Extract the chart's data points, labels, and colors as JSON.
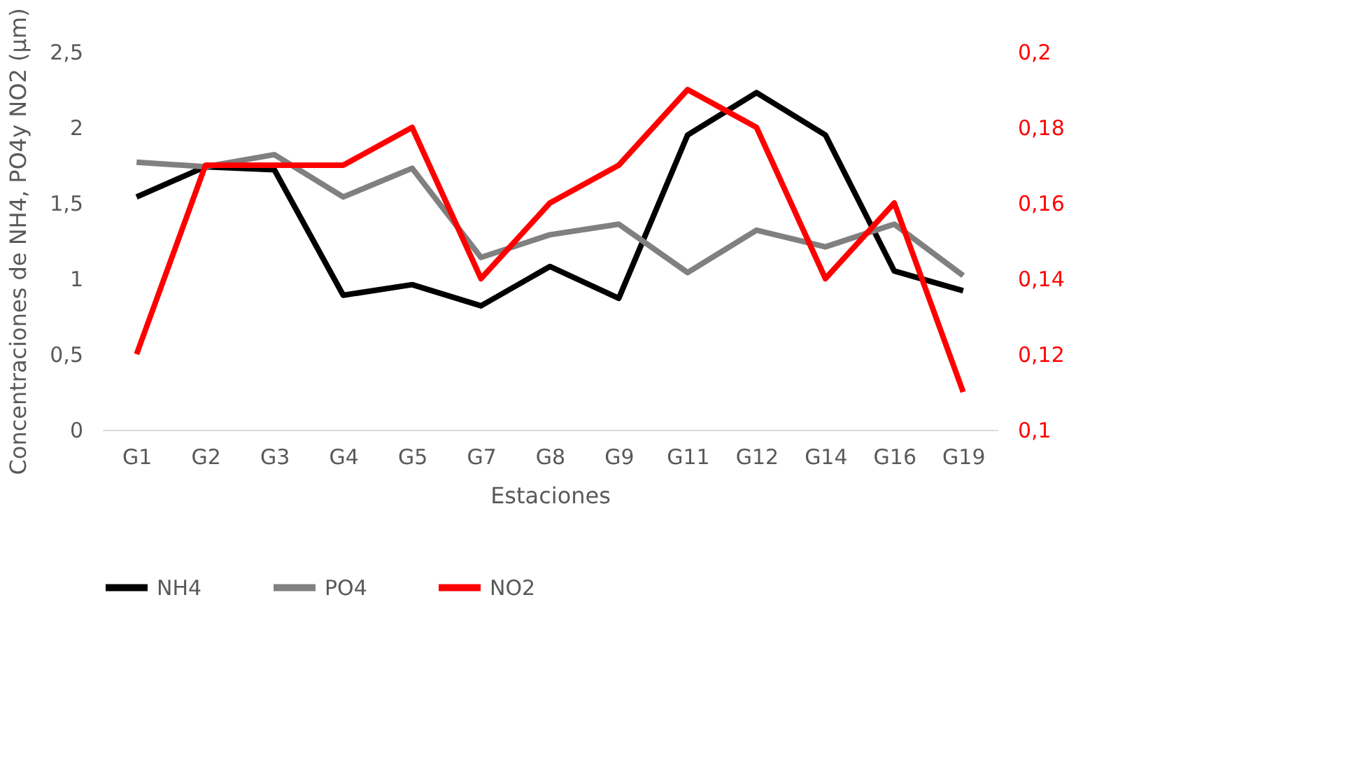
{
  "chart_data": {
    "type": "line",
    "xlabel": "Estaciones",
    "ylabel": "Concentraciones de NH4, PO4y NO2 (µm)",
    "categories": [
      "G1",
      "G2",
      "G3",
      "G4",
      "G5",
      "G7",
      "G8",
      "G9",
      "G11",
      "G12",
      "G14",
      "G16",
      "G19"
    ],
    "series": [
      {
        "name": "NH4",
        "color": "#000000",
        "values": [
          1.54,
          1.74,
          1.72,
          0.89,
          0.96,
          0.82,
          1.08,
          0.87,
          1.95,
          2.23,
          1.95,
          1.05,
          0.92
        ]
      },
      {
        "name": "PO4",
        "color": "#808080",
        "values": [
          1.77,
          1.74,
          1.82,
          1.54,
          1.73,
          1.14,
          1.29,
          1.36,
          1.04,
          1.32,
          1.21,
          1.36,
          1.02
        ]
      },
      {
        "name": "NO2",
        "color": "#ff0000",
        "axis": "y2",
        "values": [
          0.12,
          0.17,
          0.17,
          0.17,
          0.18,
          0.14,
          0.16,
          0.17,
          0.19,
          0.18,
          0.14,
          0.16,
          0.11
        ]
      }
    ],
    "ylim": [
      0,
      2.5
    ],
    "yticks": [
      0,
      {
        "value": 0.5,
        "label": "0,5"
      },
      1,
      {
        "value": 1.5,
        "label": "1,5"
      },
      2,
      {
        "value": 2.5,
        "label": "2,5"
      }
    ],
    "y2lim": [
      0.1,
      0.2
    ],
    "y2ticks": [
      {
        "value": 0.1,
        "label": "0,1"
      },
      {
        "value": 0.12,
        "label": "0,12"
      },
      {
        "value": 0.14,
        "label": "0,14"
      },
      {
        "value": 0.16,
        "label": "0,16"
      },
      {
        "value": 0.18,
        "label": "0,18"
      },
      {
        "value": 0.2,
        "label": "0,2"
      }
    ],
    "grid": false,
    "legend": "bottom",
    "marker": "none",
    "line_style": "solid"
  }
}
